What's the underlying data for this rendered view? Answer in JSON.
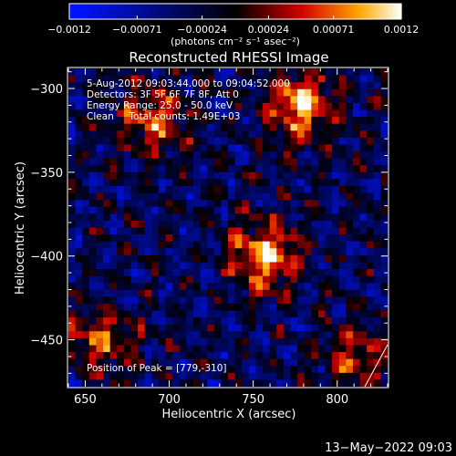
{
  "chart_data": {
    "type": "heatmap",
    "title": "Reconstructed RHESSI Image",
    "xlabel": "Heliocentric X (arcsec)",
    "ylabel": "Heliocentric Y (arcsec)",
    "xlim": [
      640,
      830
    ],
    "ylim": [
      -478,
      -288
    ],
    "x_ticks": [
      650,
      700,
      750,
      800
    ],
    "y_ticks": [
      -300,
      -350,
      -400,
      -450
    ],
    "x_tick_labels": [
      "650",
      "700",
      "750",
      "800"
    ],
    "y_tick_labels": [
      "−300",
      "−350",
      "−400",
      "−450"
    ],
    "colorbar": {
      "min": -0.0012,
      "max": 0.0012,
      "tick_values": [
        -0.0012,
        -0.00071,
        -0.00024,
        0.00024,
        0.00071,
        0.0012
      ],
      "tick_labels": [
        "−0.0012",
        "−0.00071",
        "−0.00024",
        "0.00024",
        "0.00071",
        "0.0012"
      ],
      "unit_label": "(photons cm⁻² s⁻¹ asec⁻²)"
    },
    "annotations": [
      "5-Aug-2012 09:03:44.000 to 09:04:52.000",
      "Detectors: 3F 5F 6F 7F 8F, Att 0",
      "Energy Range: 25.0 - 50.0 keV",
      "Clean     Total counts: 1.49E+03"
    ],
    "peak_label": "Position of Peak = [779,-310]",
    "peak": [
      779,
      -310
    ],
    "bright_sources": [
      {
        "x": 757,
        "y": -400,
        "value": 0.0012
      },
      {
        "x": 779,
        "y": -310,
        "value": 0.0012
      },
      {
        "x": 690,
        "y": -320,
        "value": 0.0009
      },
      {
        "x": 660,
        "y": -450,
        "value": 0.0008
      },
      {
        "x": 810,
        "y": -460,
        "value": 0.0007
      }
    ],
    "colors": {
      "negative": "#1010ff",
      "zero": "#000000",
      "positive_mid": "#d02000",
      "positive_high": "#ffff80",
      "max": "#ffffff"
    }
  },
  "footer": {
    "timestamp": "13−May−2022 09:03"
  }
}
